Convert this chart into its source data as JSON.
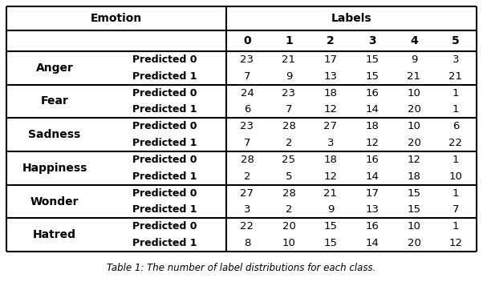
{
  "emotions": [
    "Anger",
    "Fear",
    "Sadness",
    "Happiness",
    "Wonder",
    "Hatred"
  ],
  "predicted_labels": [
    "Predicted 0",
    "Predicted 1"
  ],
  "label_columns": [
    "0",
    "1",
    "2",
    "3",
    "4",
    "5"
  ],
  "data": {
    "Anger": {
      "Predicted 0": [
        23,
        21,
        17,
        15,
        9,
        3
      ],
      "Predicted 1": [
        7,
        9,
        13,
        15,
        21,
        21
      ]
    },
    "Fear": {
      "Predicted 0": [
        24,
        23,
        18,
        16,
        10,
        1
      ],
      "Predicted 1": [
        6,
        7,
        12,
        14,
        20,
        1
      ]
    },
    "Sadness": {
      "Predicted 0": [
        23,
        28,
        27,
        18,
        10,
        6
      ],
      "Predicted 1": [
        7,
        2,
        3,
        12,
        20,
        22
      ]
    },
    "Happiness": {
      "Predicted 0": [
        28,
        25,
        18,
        16,
        12,
        1
      ],
      "Predicted 1": [
        2,
        5,
        12,
        14,
        18,
        10
      ]
    },
    "Wonder": {
      "Predicted 0": [
        27,
        28,
        21,
        17,
        15,
        1
      ],
      "Predicted 1": [
        3,
        2,
        9,
        13,
        15,
        7
      ]
    },
    "Hatred": {
      "Predicted 0": [
        22,
        20,
        15,
        16,
        10,
        1
      ],
      "Predicted 1": [
        8,
        10,
        15,
        14,
        20,
        12
      ]
    }
  },
  "header_emotion": "Emotion",
  "header_labels": "Labels",
  "bg_color": "#ffffff",
  "line_color": "#000000",
  "text_color": "#000000",
  "caption": "Table 1: The number of label distributions for each class.",
  "figsize": [
    6.02,
    3.52
  ],
  "dpi": 100
}
